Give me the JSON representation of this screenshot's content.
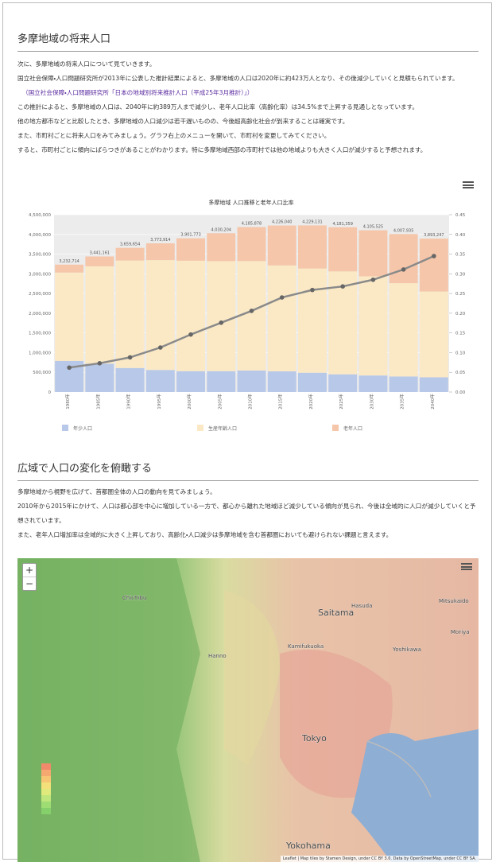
{
  "section1": {
    "title": "多摩地域の将来人口",
    "paragraphs": [
      "次に、多摩地域の将来人口について見ていきます。",
      "国立社会保障・人口問題研究所が2013年に公表した推計結果によると、多摩地域の人口は2020年に約423万人となり、その後減少していくと見積もられています。"
    ],
    "link": "（国立社会保障・人口問題研究所「日本の地域別将来推計人口（平成25年3月推計）」）",
    "paragraphs2": [
      "この推計によると、多摩地域の人口は、2040年に約389万人まで減少し、老年人口比率（高齢化率）は34.5%まで上昇する見通しとなっています。",
      "他の地方都市などと比較したとき、多摩地域の人口減少は若干遅いものの、今後超高齢化社会が到来することは確実です。",
      "また、市町村ごとに将来人口をみてみましょう。グラフ右上のメニューを開いて、市町村を変更してみてください。",
      "すると、市町村ごとに傾向にばらつきがあることがわかります。特に多摩地域西部の市町村では他の地域よりも大きく人口が減少すると予想されます。"
    ]
  },
  "chart_data": {
    "type": "stacked_bar_line",
    "title": "多摩地域 人口推移と老年人口比率",
    "categories": [
      "1980年",
      "1985年",
      "1990年",
      "1995年",
      "2000年",
      "2005年",
      "2010年",
      "2015年",
      "2020年",
      "2025年",
      "2030年",
      "2035年",
      "2040年"
    ],
    "series": [
      {
        "name": "年少人口",
        "color": "#b8c8e8",
        "values": [
          790000,
          720000,
          610000,
          560000,
          530000,
          530000,
          545000,
          525000,
          490000,
          450000,
          420000,
          395000,
          375000
        ]
      },
      {
        "name": "生産年齢人口",
        "color": "#fbe9c6",
        "values": [
          2242714,
          2470161,
          2727654,
          2787914,
          2801773,
          2791204,
          2778878,
          2687040,
          2644131,
          2610359,
          2515525,
          2366935,
          2175247
        ]
      },
      {
        "name": "老年人口",
        "color": "#f5c6aa",
        "values": [
          200000,
          251000,
          322000,
          426000,
          570000,
          709000,
          862000,
          1014000,
          1095000,
          1121000,
          1170000,
          1246000,
          1343000
        ]
      }
    ],
    "totals": {
      "values": [
        3232714,
        3441161,
        3659654,
        3773914,
        3901773,
        4030204,
        4185878,
        4226040,
        4229131,
        4181359,
        4105525,
        4007935,
        3893247
      ],
      "value_labels": [
        "3,232,714",
        "3,441,161",
        "3,659,654",
        "3,773,914",
        "3,901,773",
        "4,030,204",
        "4,185,878",
        "4,226,040",
        "4,229,131",
        "4,181,359",
        "4,105,525",
        "4,007,935",
        "3,893,247"
      ]
    },
    "line": {
      "color": "#8a8a8a",
      "axis": "y2",
      "values": [
        0.062,
        0.073,
        0.088,
        0.113,
        0.146,
        0.176,
        0.206,
        0.24,
        0.259,
        0.268,
        0.285,
        0.311,
        0.345
      ]
    },
    "ylim": [
      0,
      4500000
    ],
    "yticks": [
      0,
      {
        "value": 500000,
        "label": "500,000"
      },
      {
        "value": 1000000,
        "label": "1,000,000"
      },
      {
        "value": 1500000,
        "label": "1,500,000"
      },
      {
        "value": 2000000,
        "label": "2,000,000"
      },
      {
        "value": 2500000,
        "label": "2,500,000"
      },
      {
        "value": 3000000,
        "label": "3,000,000"
      },
      {
        "value": 3500000,
        "label": "3,500,000"
      },
      {
        "value": 4000000,
        "label": "4,000,000"
      },
      {
        "value": 4500000,
        "label": "4,500,000"
      }
    ],
    "y2lim": [
      0,
      0.45
    ],
    "y2ticks": [
      {
        "value": 0,
        "label": "0.00"
      },
      0.05,
      {
        "value": 0.1,
        "label": "0.10"
      },
      0.15,
      {
        "value": 0.2,
        "label": "0.20"
      },
      0.25,
      {
        "value": 0.3,
        "label": "0.30"
      },
      0.35,
      {
        "value": 0.4,
        "label": "0.40"
      },
      0.45
    ],
    "grid": true,
    "legend": "bottom"
  },
  "section2": {
    "title": "広域で人口の変化を俯瞰する",
    "paragraphs": [
      "多摩地域から視野を広げて、首都圏全体の人口の動向を見てみましょう。",
      "2010年から2015年にかけて、人口は都心部を中心に増加している一方で、都心から離れた地域ほど減少している傾向が見られ、今後は全域的に人口が減少していくと予想されています。",
      "また、老年人口増加率は全域的に大きく上昇しており、高齢化・人口減少は多摩地域を含む首都圏においても避けられない課題と言えます。"
    ]
  },
  "map": {
    "zoom_in": "+",
    "zoom_out": "−",
    "places": [
      "Chichibu",
      "Hanno",
      "Saitama",
      "Kamifukuoka",
      "Hasuda",
      "Yoshikawa",
      "Mitsukaido",
      "Moriya",
      "Tokyo",
      "Yokohama"
    ],
    "attribution": "Leaflet | Map tiles by Stamen Design, under CC BY 3.0. Data by OpenStreetMap, under CC BY SA."
  }
}
